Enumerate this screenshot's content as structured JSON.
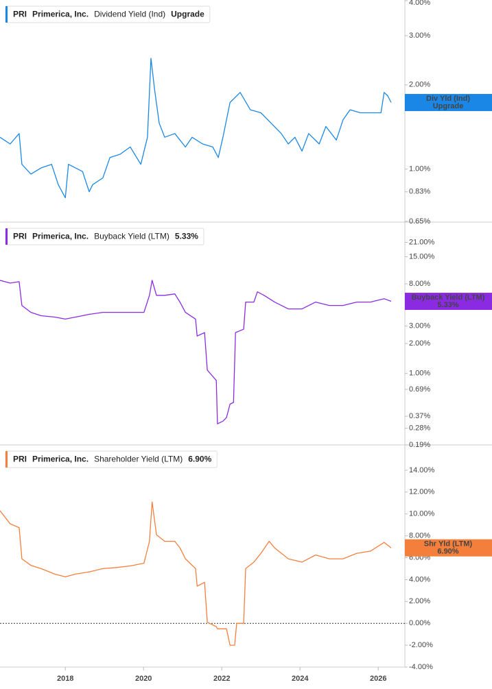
{
  "chart_data": [
    {
      "type": "line",
      "log": true,
      "ticker": "PRI",
      "company": "Primerica, Inc.",
      "value_label": "Upgrade",
      "badge_label": "Div Yld (Ind)",
      "xlim": [
        2016.33,
        2026.68
      ],
      "ylim": [
        0.65,
        4.0
      ],
      "yticks": [
        {
          "value": 4,
          "label": "4.00%"
        },
        {
          "value": 3,
          "label": "3.00%"
        },
        {
          "value": 2,
          "label": "2.00%"
        },
        {
          "value": 1,
          "label": "1.00%"
        },
        {
          "value": 0.83,
          "label": "0.83%"
        },
        {
          "value": 0.65,
          "label": "0.65%"
        }
      ],
      "x": [
        2016.33,
        2016.59,
        2016.82,
        2016.89,
        2017.12,
        2017.38,
        2017.65,
        2017.82,
        2018.0,
        2018.08,
        2018.26,
        2018.44,
        2018.61,
        2018.7,
        2018.96,
        2019.14,
        2019.4,
        2019.66,
        2019.93,
        2020.1,
        2020.19,
        2020.28,
        2020.4,
        2020.54,
        2020.8,
        2021.07,
        2021.24,
        2021.51,
        2021.77,
        2021.91,
        2022.03,
        2022.21,
        2022.47,
        2022.73,
        2023.0,
        2023.26,
        2023.52,
        2023.7,
        2023.87,
        2024.05,
        2024.22,
        2024.49,
        2024.66,
        2024.93,
        2025.1,
        2025.28,
        2025.54,
        2025.8,
        2026.07,
        2026.15,
        2026.24,
        2026.33
      ],
      "series": [
        {
          "name": "Dividend Yield (Ind)",
          "color": "#1a87e6",
          "values": [
            1.3,
            1.23,
            1.34,
            1.04,
            0.96,
            1.01,
            1.04,
            0.88,
            0.79,
            1.04,
            1.01,
            0.98,
            0.83,
            0.88,
            0.93,
            1.1,
            1.13,
            1.2,
            1.04,
            1.3,
            2.49,
            1.93,
            1.46,
            1.3,
            1.34,
            1.2,
            1.3,
            1.23,
            1.2,
            1.1,
            1.3,
            1.73,
            1.88,
            1.63,
            1.59,
            1.46,
            1.34,
            1.23,
            1.3,
            1.16,
            1.34,
            1.23,
            1.42,
            1.27,
            1.5,
            1.63,
            1.59,
            1.59,
            1.59,
            1.88,
            1.83,
            1.73
          ]
        }
      ]
    },
    {
      "type": "line",
      "log": true,
      "ticker": "PRI",
      "company": "Primerica, Inc.",
      "value_label": "5.33%",
      "badge_label": "Buyback Yield (LTM)",
      "xlim": [
        2016.33,
        2026.68
      ],
      "ylim": [
        0.19,
        33
      ],
      "yticks": [
        {
          "value": 21,
          "label": "21.00%"
        },
        {
          "value": 15,
          "label": "15.00%"
        },
        {
          "value": 8,
          "label": "8.00%"
        },
        {
          "value": 3,
          "label": "3.00%"
        },
        {
          "value": 2,
          "label": "2.00%"
        },
        {
          "value": 1,
          "label": "1.00%"
        },
        {
          "value": 0.69,
          "label": "0.69%"
        },
        {
          "value": 0.37,
          "label": "0.37%"
        },
        {
          "value": 0.28,
          "label": "0.28%"
        },
        {
          "value": 0.19,
          "label": "0.19%"
        }
      ],
      "x": [
        2016.33,
        2016.59,
        2016.82,
        2016.89,
        2017.12,
        2017.38,
        2017.73,
        2018.0,
        2018.26,
        2018.61,
        2018.96,
        2019.31,
        2019.66,
        2020.01,
        2020.15,
        2020.22,
        2020.33,
        2020.54,
        2020.8,
        2020.93,
        2021.07,
        2021.33,
        2021.37,
        2021.56,
        2021.63,
        2021.86,
        2021.89,
        2022.03,
        2022.12,
        2022.21,
        2022.3,
        2022.35,
        2022.56,
        2022.61,
        2022.82,
        2022.91,
        2023.08,
        2023.35,
        2023.7,
        2024.05,
        2024.4,
        2024.75,
        2025.1,
        2025.45,
        2025.8,
        2026.15,
        2026.33
      ],
      "series": [
        {
          "name": "Buyback Yield (LTM)",
          "color": "#8a2be2",
          "values": [
            8.68,
            8.15,
            8.41,
            4.84,
            4.13,
            3.82,
            3.7,
            3.53,
            3.7,
            3.94,
            4.13,
            4.13,
            4.13,
            4.13,
            6.13,
            8.68,
            6.13,
            6.13,
            6.33,
            5.24,
            4.13,
            3.53,
            2.38,
            2.58,
            1.08,
            0.85,
            0.31,
            0.33,
            0.36,
            0.49,
            0.51,
            2.58,
            2.79,
            5.24,
            5.24,
            6.64,
            6.13,
            5.24,
            4.47,
            4.47,
            5.24,
            4.84,
            4.84,
            5.24,
            5.24,
            5.67,
            5.33
          ]
        }
      ]
    },
    {
      "type": "line",
      "log": false,
      "zero_line": true,
      "ticker": "PRI",
      "company": "Primerica, Inc.",
      "value_label": "6.90%",
      "badge_label": "Shr Yld (LTM)",
      "xlim": [
        2016.33,
        2026.68
      ],
      "ylim": [
        -4,
        16.25
      ],
      "xticks": [
        2018,
        2020,
        2022,
        2024,
        2026
      ],
      "yticks": [
        {
          "value": 14,
          "label": "14.00%"
        },
        {
          "value": 12,
          "label": "12.00%"
        },
        {
          "value": 10,
          "label": "10.00%"
        },
        {
          "value": 8,
          "label": "8.00%"
        },
        {
          "value": 6,
          "label": "6.00%"
        },
        {
          "value": 4,
          "label": "4.00%"
        },
        {
          "value": 2,
          "label": "2.00%"
        },
        {
          "value": 0,
          "label": "0.00%"
        },
        {
          "value": -2,
          "label": "-2.00%"
        },
        {
          "value": -4,
          "label": "-4.00%"
        }
      ],
      "x": [
        2016.33,
        2016.59,
        2016.82,
        2016.89,
        2017.12,
        2017.38,
        2017.73,
        2018.0,
        2018.26,
        2018.61,
        2018.96,
        2019.31,
        2019.66,
        2020.01,
        2020.15,
        2020.22,
        2020.33,
        2020.54,
        2020.8,
        2020.93,
        2021.07,
        2021.33,
        2021.37,
        2021.56,
        2021.63,
        2021.86,
        2021.89,
        2022.12,
        2022.21,
        2022.33,
        2022.38,
        2022.56,
        2022.61,
        2022.82,
        2023.0,
        2023.21,
        2023.35,
        2023.7,
        2024.05,
        2024.4,
        2024.75,
        2025.1,
        2025.45,
        2025.8,
        2026.15,
        2026.33
      ],
      "series": [
        {
          "name": "Shareholder Yield (LTM)",
          "color": "#f47f3c",
          "values": [
            10.3,
            9.1,
            8.75,
            5.9,
            5.3,
            5.0,
            4.5,
            4.25,
            4.5,
            4.7,
            5.0,
            5.1,
            5.25,
            5.5,
            7.5,
            11.1,
            8.1,
            7.5,
            7.5,
            6.9,
            5.9,
            5.0,
            3.4,
            3.75,
            0.1,
            -0.3,
            -0.5,
            -0.5,
            -2.0,
            -2.0,
            0,
            0,
            5.0,
            5.6,
            6.4,
            7.5,
            6.9,
            5.9,
            5.6,
            6.25,
            5.9,
            5.9,
            6.4,
            6.6,
            7.4,
            6.9
          ]
        }
      ]
    }
  ]
}
